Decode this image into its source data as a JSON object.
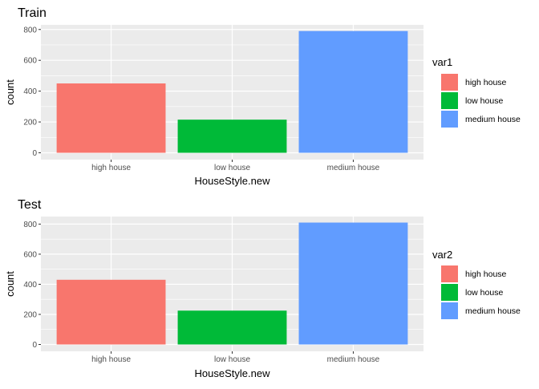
{
  "chart_data": [
    {
      "type": "bar",
      "title": "Train",
      "xlabel": "HouseStyle.new",
      "ylabel": "count",
      "categories": [
        "high house",
        "low house",
        "medium house"
      ],
      "values": [
        450,
        215,
        790
      ],
      "colors": [
        "#F8766D",
        "#00BA38",
        "#619CFF"
      ],
      "yticks": [
        "0",
        "200",
        "400",
        "600",
        "800"
      ],
      "ylim": [
        0,
        830
      ],
      "grid": true,
      "legend": {
        "title": "var1",
        "placement": "right",
        "entries": [
          "high house",
          "low house",
          "medium house"
        ]
      }
    },
    {
      "type": "bar",
      "title": "Test",
      "xlabel": "HouseStyle.new",
      "ylabel": "count",
      "categories": [
        "high house",
        "low house",
        "medium house"
      ],
      "values": [
        430,
        225,
        810
      ],
      "colors": [
        "#F8766D",
        "#00BA38",
        "#619CFF"
      ],
      "yticks": [
        "0",
        "200",
        "400",
        "600",
        "800"
      ],
      "ylim": [
        0,
        850
      ],
      "grid": true,
      "legend": {
        "title": "var2",
        "placement": "right",
        "entries": [
          "high house",
          "low house",
          "medium house"
        ]
      }
    }
  ]
}
